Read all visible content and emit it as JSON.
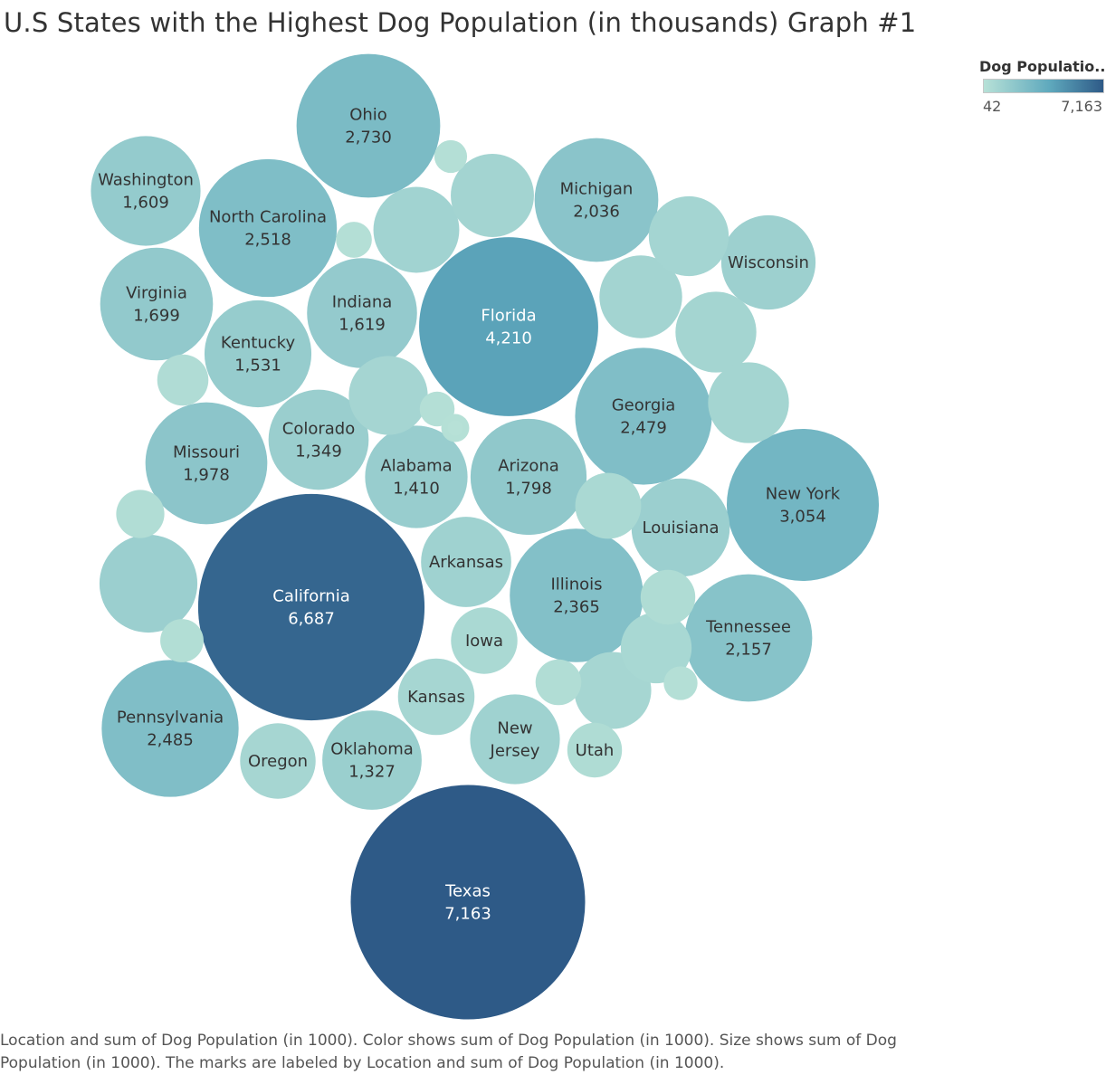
{
  "title": "U.S States with the Highest Dog Population (in thousands) Graph #1",
  "legend": {
    "title": "Dog Populatio..",
    "min_label": "42",
    "max_label": "7,163",
    "color_low": "#b7e1d7",
    "color_high": "#2e5a87"
  },
  "caption": "Location and sum of Dog Population (in 1000).  Color shows sum of Dog Population (in 1000).  Size shows sum of Dog Population (in 1000).  The marks are labeled by Location and sum of Dog Population (in 1000).",
  "chart_data": {
    "type": "bubble",
    "measure": "Dog Population (in 1000)",
    "range": [
      42,
      7163
    ],
    "points": [
      {
        "label": "Texas",
        "value": 7163,
        "display": "7,163"
      },
      {
        "label": "California",
        "value": 6687,
        "display": "6,687"
      },
      {
        "label": "Florida",
        "value": 4210,
        "display": "4,210"
      },
      {
        "label": "New York",
        "value": 3054,
        "display": "3,054"
      },
      {
        "label": "Ohio",
        "value": 2730,
        "display": "2,730"
      },
      {
        "label": "North Carolina",
        "value": 2518,
        "display": "2,518"
      },
      {
        "label": "Pennsylvania",
        "value": 2485,
        "display": "2,485"
      },
      {
        "label": "Georgia",
        "value": 2479,
        "display": "2,479"
      },
      {
        "label": "Illinois",
        "value": 2365,
        "display": "2,365"
      },
      {
        "label": "Tennessee",
        "value": 2157,
        "display": "2,157"
      },
      {
        "label": "Michigan",
        "value": 2036,
        "display": "2,036"
      },
      {
        "label": "Missouri",
        "value": 1978,
        "display": "1,978"
      },
      {
        "label": "Arizona",
        "value": 1798,
        "display": "1,798"
      },
      {
        "label": "Virginia",
        "value": 1699,
        "display": "1,699"
      },
      {
        "label": "Indiana",
        "value": 1619,
        "display": "1,619"
      },
      {
        "label": "Washington",
        "value": 1609,
        "display": "1,609"
      },
      {
        "label": "Kentucky",
        "value": 1531,
        "display": "1,531"
      },
      {
        "label": "Alabama",
        "value": 1410,
        "display": "1,410"
      },
      {
        "label": "Colorado",
        "value": 1349,
        "display": "1,349"
      },
      {
        "label": "Oklahoma",
        "value": 1327,
        "display": "1,327"
      },
      {
        "label": "Louisiana",
        "value": 1300,
        "display": ""
      },
      {
        "label": "Wisconsin",
        "value": 1200,
        "display": ""
      },
      {
        "label": "Arkansas",
        "value": 1100,
        "display": ""
      },
      {
        "label": "New Jersey",
        "value": 1090,
        "display": ""
      },
      {
        "label": "Kansas",
        "value": 800,
        "display": ""
      },
      {
        "label": "Oregon",
        "value": 780,
        "display": ""
      },
      {
        "label": "Iowa",
        "value": 610,
        "display": ""
      },
      {
        "label": "Utah",
        "value": 420,
        "display": ""
      },
      {
        "label": "",
        "value": 1290,
        "display": ""
      },
      {
        "label": "",
        "value": 1000,
        "display": ""
      },
      {
        "label": "",
        "value": 940,
        "display": ""
      },
      {
        "label": "",
        "value": 930,
        "display": ""
      },
      {
        "label": "",
        "value": 890,
        "display": ""
      },
      {
        "label": "",
        "value": 890,
        "display": ""
      },
      {
        "label": "",
        "value": 870,
        "display": ""
      },
      {
        "label": "",
        "value": 850,
        "display": ""
      },
      {
        "label": "",
        "value": 810,
        "display": ""
      },
      {
        "label": "",
        "value": 690,
        "display": ""
      },
      {
        "label": "",
        "value": 600,
        "display": ""
      },
      {
        "label": "",
        "value": 420,
        "display": ""
      },
      {
        "label": "",
        "value": 370,
        "display": ""
      },
      {
        "label": "",
        "value": 330,
        "display": ""
      },
      {
        "label": "",
        "value": 300,
        "display": ""
      },
      {
        "label": "",
        "value": 270,
        "display": ""
      },
      {
        "label": "",
        "value": 190,
        "display": ""
      },
      {
        "label": "",
        "value": 180,
        "display": ""
      },
      {
        "label": "",
        "value": 170,
        "display": ""
      },
      {
        "label": "",
        "value": 160,
        "display": ""
      },
      {
        "label": "",
        "value": 120,
        "display": ""
      },
      {
        "label": "",
        "value": 42,
        "display": ""
      }
    ]
  }
}
